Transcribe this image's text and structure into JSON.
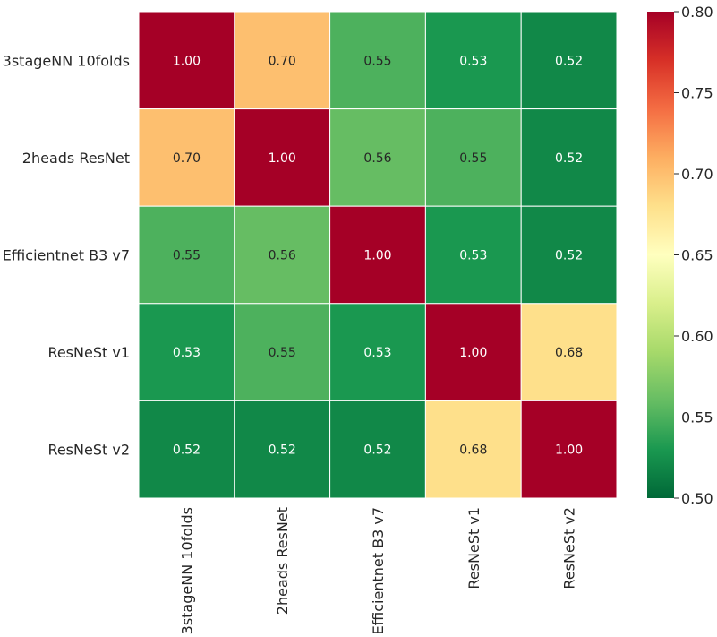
{
  "chart_data": {
    "type": "heatmap",
    "title": "",
    "xlabel": "",
    "ylabel": "",
    "x_categories": [
      "3stageNN 10folds",
      "2heads ResNet",
      "Efficientnet B3 v7",
      "ResNeSt v1",
      "ResNeSt v2"
    ],
    "y_categories": [
      "3stageNN 10folds",
      "2heads ResNet",
      "Efficientnet B3 v7",
      "ResNeSt v1",
      "ResNeSt v2"
    ],
    "values": [
      [
        1.0,
        0.7,
        0.55,
        0.53,
        0.52
      ],
      [
        0.7,
        1.0,
        0.56,
        0.55,
        0.52
      ],
      [
        0.55,
        0.56,
        1.0,
        0.53,
        0.52
      ],
      [
        0.53,
        0.55,
        0.53,
        1.0,
        0.68
      ],
      [
        0.52,
        0.52,
        0.52,
        0.68,
        1.0
      ]
    ],
    "value_format": "0.00",
    "colormap": "RdYlGn_r",
    "vmin": 0.5,
    "vmax": 0.8,
    "colorbar_ticks": [
      "0.50",
      "0.55",
      "0.60",
      "0.65",
      "0.70",
      "0.75",
      "0.80"
    ],
    "cell_border_color": "#ffffff",
    "grid": false
  }
}
